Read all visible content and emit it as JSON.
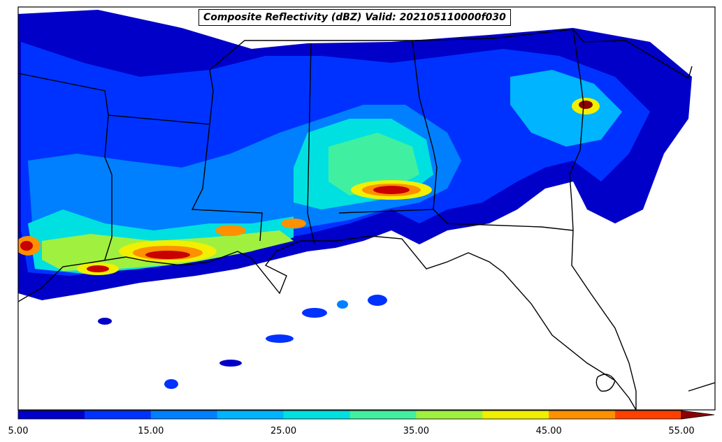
{
  "map": {
    "title": "Composite Reflectivity (dBZ) Valid: 202105110000f030",
    "colorbar": {
      "colors": [
        "#0000c8",
        "#0032ff",
        "#0080ff",
        "#00b4ff",
        "#00e0e0",
        "#40f0a0",
        "#a0f040",
        "#f0f000",
        "#ff9000",
        "#ff4000",
        "#c80000",
        "#8b0000"
      ],
      "tick_labels": [
        "5.00",
        "15.00",
        "25.00",
        "35.00",
        "45.00",
        "55.00"
      ],
      "extend": "max"
    },
    "land_color": "#ffffff",
    "border_color": "#000000"
  }
}
